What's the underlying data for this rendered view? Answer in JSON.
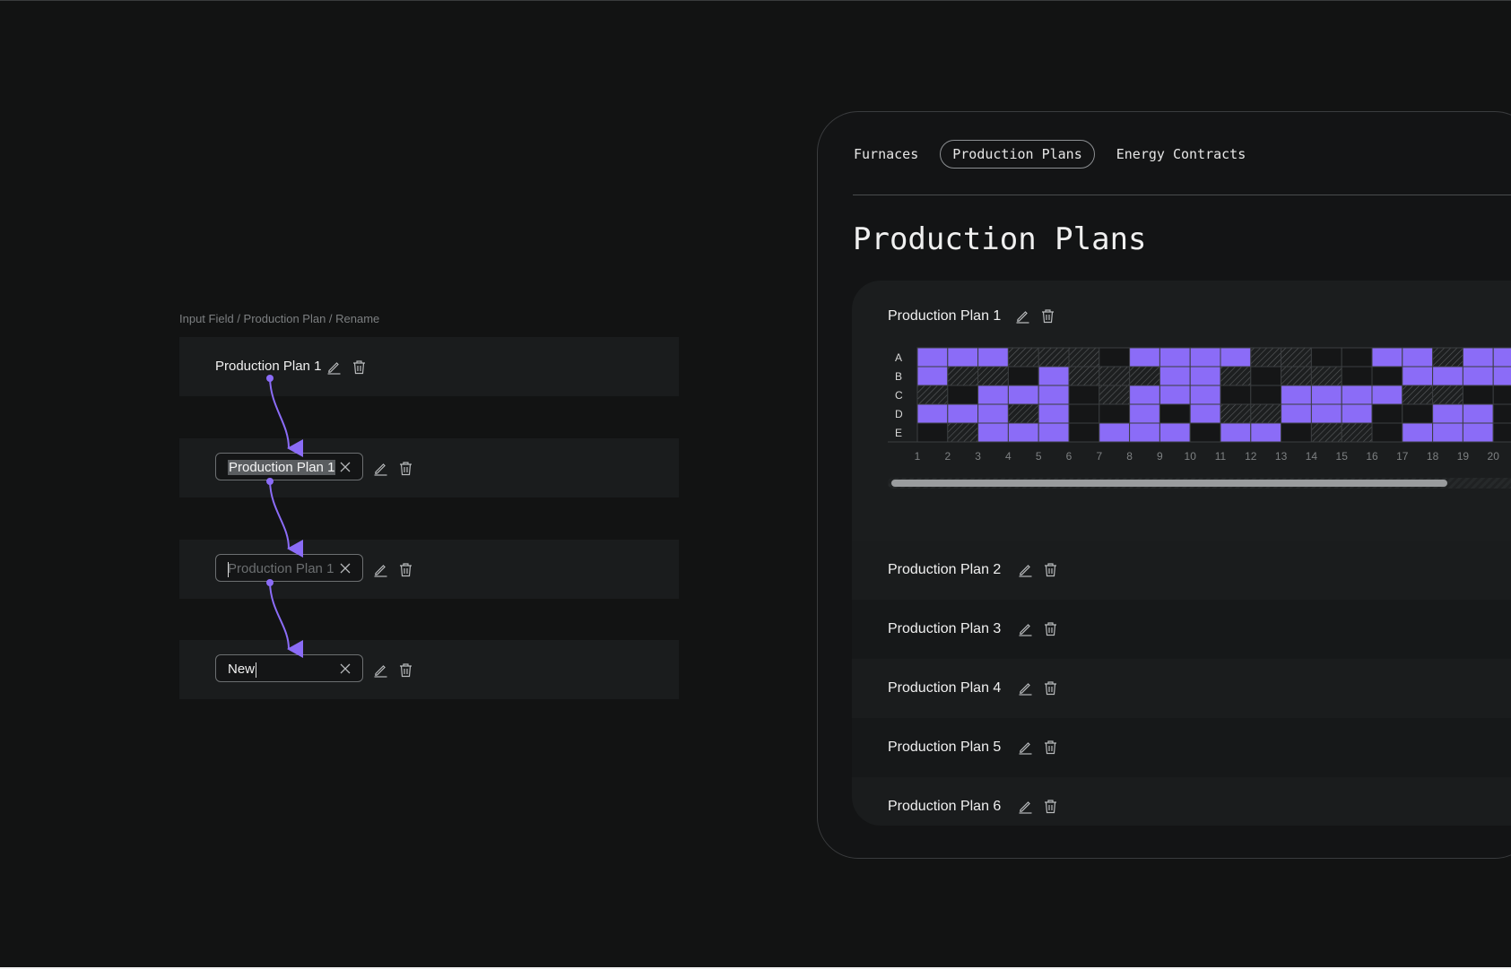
{
  "caption": "Input Field / Production Plan / Rename",
  "states": {
    "default_name": "Production Plan 1",
    "selected_value": "Production Plan 1",
    "placeholder": "Production Plan 1",
    "typed_value": "New"
  },
  "icons": [
    "pencil-icon",
    "trash-icon",
    "close-icon"
  ],
  "tabs": [
    {
      "label": "Furnaces"
    },
    {
      "label": "Production Plans"
    },
    {
      "label": "Energy Contracts"
    }
  ],
  "active_tab": "Production Plans",
  "page_title": "Production Plans",
  "plans": [
    {
      "name": "Production Plan 1"
    },
    {
      "name": "Production Plan 2"
    },
    {
      "name": "Production Plan 3"
    },
    {
      "name": "Production Plan 4"
    },
    {
      "name": "Production Plan 5"
    },
    {
      "name": "Production Plan 6"
    }
  ],
  "grid": {
    "rows": [
      "A",
      "B",
      "C",
      "D",
      "E"
    ],
    "columns": [
      "1",
      "2",
      "3",
      "4",
      "5",
      "6",
      "7",
      "8",
      "9",
      "10",
      "11",
      "12",
      "13",
      "14",
      "15",
      "16",
      "17",
      "18",
      "19",
      "20"
    ],
    "cells": [
      "PPPHHHEPPPPHHEEPPHPP",
      "PHHEPHHHPPHEHHEEPPPP",
      "HEPPPEHPPPEEPPPPHHEE",
      "PPPHPEEPEPHHPPPEEPPE",
      "EHPPPEPPPEPPEHHEPPPE"
    ],
    "cell_legend": {
      "P": "filled",
      "H": "hatched",
      "E": "empty"
    }
  },
  "colors": {
    "accent": "#8b6cf7",
    "background": "#121313",
    "panel": "#131415",
    "row": "#1a1c1d"
  }
}
